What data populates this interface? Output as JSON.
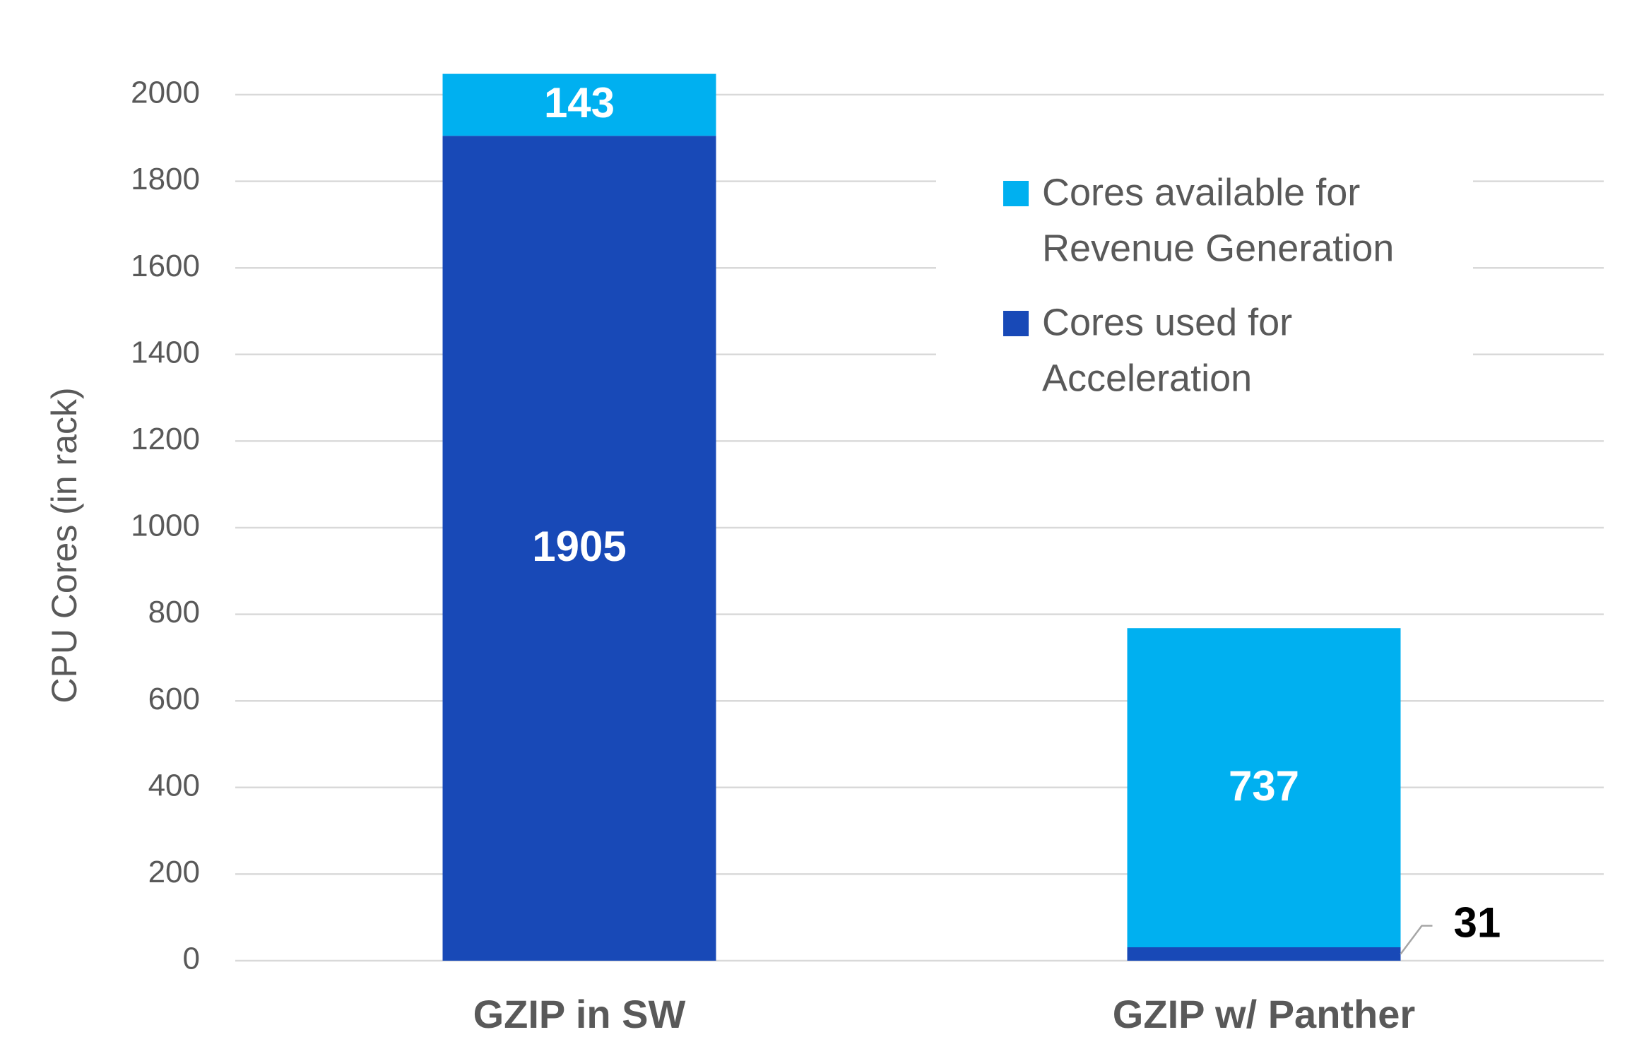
{
  "chart_data": {
    "type": "bar",
    "stacked": true,
    "title": "",
    "xlabel": "",
    "ylabel": "CPU Cores (in rack)",
    "ylim": [
      0,
      2000
    ],
    "yticks": [
      0,
      200,
      400,
      600,
      800,
      1000,
      1200,
      1400,
      1600,
      1800,
      2000
    ],
    "grid": true,
    "legend_position": "top-right",
    "categories": [
      "GZIP in SW",
      "GZIP w/ Panther"
    ],
    "series": [
      {
        "name": "Cores used for Acceleration",
        "values": [
          1905,
          31
        ],
        "color": "#1849B7",
        "label_color": "#FFFFFF",
        "labels": [
          "1905",
          "31"
        ]
      },
      {
        "name": "Cores available for Revenue Generation",
        "values": [
          143,
          737
        ],
        "color": "#00B0F0",
        "label_color": "#FFFFFF",
        "labels": [
          "143",
          "737"
        ]
      }
    ],
    "legend": [
      {
        "lines": [
          "Cores available for",
          "Revenue Generation"
        ],
        "color": "#00B0F0"
      },
      {
        "lines": [
          "Cores used for",
          "Acceleration"
        ],
        "color": "#1849B7"
      }
    ],
    "outside_label_color": "#000000",
    "gridline_color": "#D9D9D9",
    "axis_text_color": "#595959"
  }
}
